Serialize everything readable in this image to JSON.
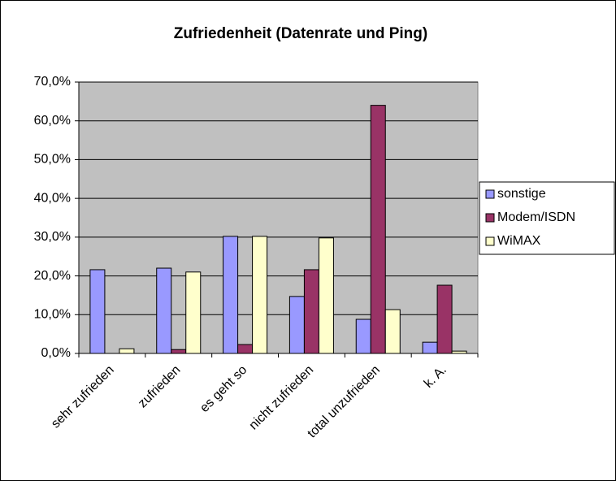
{
  "chart_data": {
    "type": "bar",
    "title": "Zufriedenheit  (Datenrate und Ping)",
    "categories": [
      "sehr zufrieden",
      "zufrieden",
      "es geht so",
      "nicht zufrieden",
      "total unzufrieden",
      "k. A."
    ],
    "series": [
      {
        "name": "sonstige",
        "color": "#9999ff",
        "values": [
          21.6,
          22.0,
          30.2,
          14.7,
          8.8,
          2.9
        ]
      },
      {
        "name": "Modem/ISDN",
        "color": "#993366",
        "values": [
          0,
          1.0,
          2.3,
          21.6,
          64.0,
          17.6
        ]
      },
      {
        "name": "WiMAX",
        "color": "#ffffcc",
        "values": [
          1.2,
          21.0,
          30.2,
          29.8,
          11.3,
          0.6
        ]
      }
    ],
    "ylim": [
      0,
      70
    ],
    "yticks": [
      {
        "value": 0,
        "label": "0,0%"
      },
      {
        "value": 10,
        "label": "10,0%"
      },
      {
        "value": 20,
        "label": "20,0%"
      },
      {
        "value": 30,
        "label": "30,0%"
      },
      {
        "value": 40,
        "label": "40,0%"
      },
      {
        "value": 50,
        "label": "50,0%"
      },
      {
        "value": 60,
        "label": "60,0%"
      },
      {
        "value": 70,
        "label": "70,0%"
      }
    ],
    "grid": true,
    "legend": "right",
    "plot_background": "#c0c0c0"
  }
}
